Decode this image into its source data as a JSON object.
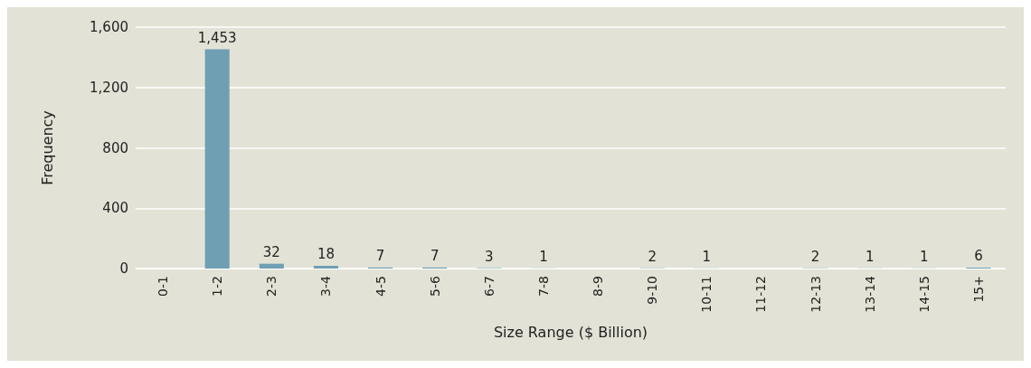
{
  "chart_data": {
    "type": "bar",
    "xlabel": "Size Range ($ Billion)",
    "ylabel": "Frequency",
    "categories": [
      "0-1",
      "1-2",
      "2-3",
      "3-4",
      "4-5",
      "5-6",
      "6-7",
      "7-8",
      "8-9",
      "9-10",
      "10-11",
      "11-12",
      "12-13",
      "13-14",
      "14-15",
      "15+"
    ],
    "values": [
      0,
      1453,
      32,
      18,
      7,
      7,
      3,
      1,
      0,
      2,
      1,
      0,
      2,
      1,
      1,
      6
    ],
    "value_labels": [
      null,
      "1,453",
      "32",
      "18",
      "7",
      "7",
      "3",
      "1",
      null,
      "2",
      "1",
      null,
      "2",
      "1",
      "1",
      "6"
    ],
    "color": "#6f9fb3",
    "ylim": [
      0,
      1600
    ],
    "yticks": [
      0,
      {
        "value": 400,
        "label": "400"
      },
      {
        "value": 800,
        "label": "800"
      },
      {
        "value": 1200,
        "label": "1,200"
      },
      {
        "value": 1600,
        "label": "1,600"
      }
    ],
    "grid": "y"
  }
}
